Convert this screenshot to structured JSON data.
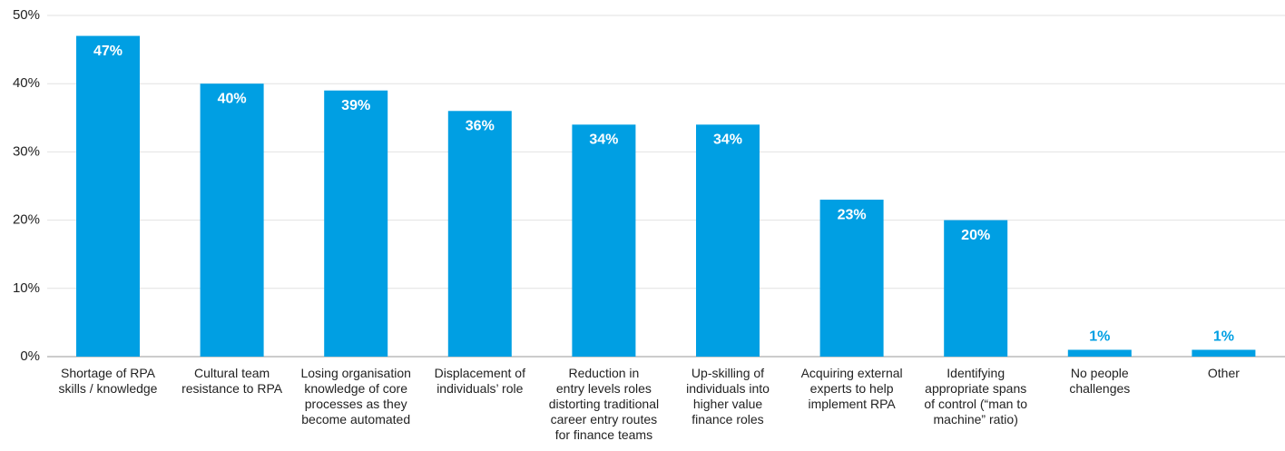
{
  "chart_data": {
    "type": "bar",
    "categories": [
      "Shortage of RPA\nskills / knowledge",
      "Cultural team\nresistance to RPA",
      "Losing organisation\nknowledge of core\nprocesses as they\nbecome automated",
      "Displacement of\nindividuals’ role",
      "Reduction in\nentry levels roles\ndistorting traditional\ncareer entry routes\nfor finance teams",
      "Up-skilling of\nindividuals into\nhigher value\nfinance roles",
      "Acquiring external\nexperts to help\nimplement RPA",
      "Identifying\nappropriate spans\nof control (“man to\nmachine” ratio)",
      "No people\nchallenges",
      "Other"
    ],
    "values": [
      47,
      40,
      39,
      36,
      34,
      34,
      23,
      20,
      1,
      1
    ],
    "value_labels": [
      "47%",
      "40%",
      "39%",
      "36%",
      "34%",
      "34%",
      "23%",
      "20%",
      "1%",
      "1%"
    ],
    "color": "#009fe3",
    "ylim": [
      0,
      50
    ],
    "yticks": [
      {
        "value": 0,
        "label": "0%"
      },
      {
        "value": 10,
        "label": "10%"
      },
      {
        "value": 20,
        "label": "20%"
      },
      {
        "value": 30,
        "label": "30%"
      },
      {
        "value": 40,
        "label": "40%"
      },
      {
        "value": 50,
        "label": "50%"
      }
    ],
    "grid": true
  }
}
